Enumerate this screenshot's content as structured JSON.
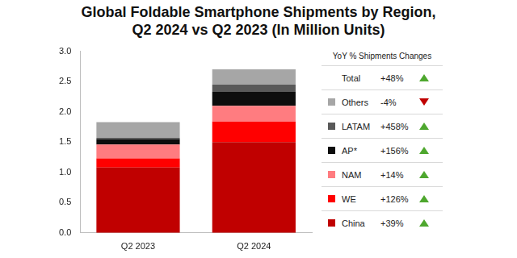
{
  "chart_data": {
    "type": "bar",
    "title": [
      "Global Foldable Smartphone Shipments by Region,",
      "Q2 2024 vs Q2 2023 (In Million Units)"
    ],
    "categories": [
      "Q2 2023",
      "Q2 2024"
    ],
    "stacked": true,
    "grid": false,
    "legend": "right",
    "legend_title": "YoY % Shipments Changes",
    "total": {
      "name": "Total",
      "yoy_change": {
        "value": 48,
        "label": "+48%"
      }
    },
    "series": [
      {
        "name": "China",
        "color": "#c00000",
        "values": [
          1.08,
          1.5
        ],
        "yoy_change": {
          "value": 39,
          "label": "+39%"
        }
      },
      {
        "name": "WE",
        "color": "#ff0000",
        "values": [
          0.15,
          0.34
        ],
        "yoy_change": {
          "value": 126,
          "label": "+126%"
        }
      },
      {
        "name": "NAM",
        "color": "#ff7c80",
        "values": [
          0.23,
          0.26
        ],
        "yoy_change": {
          "value": 14,
          "label": "+14%"
        }
      },
      {
        "name": "AP*",
        "color": "#0d0d0d",
        "values": [
          0.09,
          0.23
        ],
        "yoy_change": {
          "value": 156,
          "label": "+156%"
        }
      },
      {
        "name": "LATAM",
        "color": "#595959",
        "values": [
          0.02,
          0.12
        ],
        "yoy_change": {
          "value": 458,
          "label": "+458%"
        }
      },
      {
        "name": "Others",
        "color": "#a6a6a6",
        "values": [
          0.26,
          0.25
        ],
        "yoy_change": {
          "value": -4,
          "label": "-4%"
        }
      }
    ],
    "ylim": [
      0,
      3
    ],
    "yticks": [
      {
        "value": 0,
        "label": "0.0"
      },
      0.5,
      {
        "value": 1,
        "label": "1.0"
      },
      1.5,
      {
        "value": 2,
        "label": "2.0"
      },
      2.5,
      {
        "value": 3,
        "label": "3.0"
      }
    ]
  }
}
